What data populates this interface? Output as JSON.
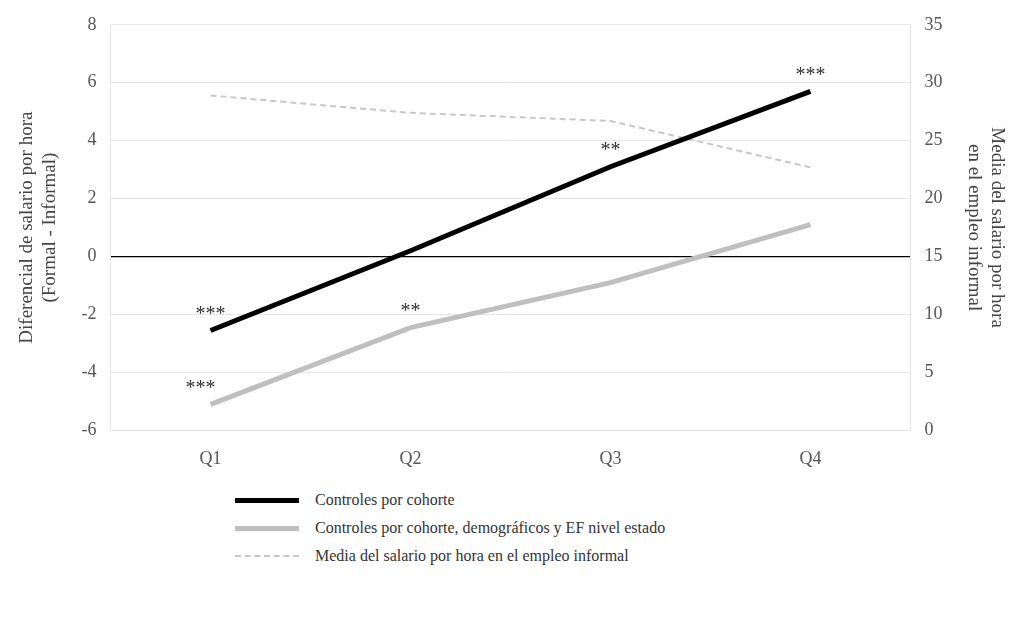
{
  "chart_data": {
    "type": "line",
    "categories": [
      "Q1",
      "Q2",
      "Q3",
      "Q4"
    ],
    "ylabel": [
      "Diferencial de salario por hora",
      "(Formal - Informal)"
    ],
    "y2label": [
      "Media del salario por hora",
      "en el empleo informal"
    ],
    "ylim": [
      -6,
      8
    ],
    "yticks": [
      -6,
      -4,
      -2,
      0,
      2,
      4,
      6,
      8
    ],
    "y2lim": [
      0,
      35
    ],
    "y2ticks": [
      0,
      5,
      10,
      15,
      20,
      25,
      30,
      35
    ],
    "grid": true,
    "legend": "bottom",
    "series": [
      {
        "name": "Controles por cohorte",
        "color": "#000000",
        "line_style": "solid",
        "values": [
          -2.55,
          0.2,
          3.1,
          5.7
        ],
        "annotations": [
          "***",
          null,
          "**",
          "***"
        ]
      },
      {
        "name": "Controles por cohorte, demográficos y EF nivel estado",
        "color": "#bfbfbf",
        "line_style": "solid",
        "values": [
          -5.1,
          -2.45,
          -0.9,
          1.1
        ],
        "annotations": [
          "***",
          "**",
          null,
          null
        ]
      },
      {
        "name": "Media del salario por hora en el empleo informal",
        "color": "#c8c8c8",
        "line_style": "dashed",
        "axis": "y2",
        "values": [
          28.9,
          27.4,
          26.7,
          22.7
        ]
      }
    ]
  }
}
